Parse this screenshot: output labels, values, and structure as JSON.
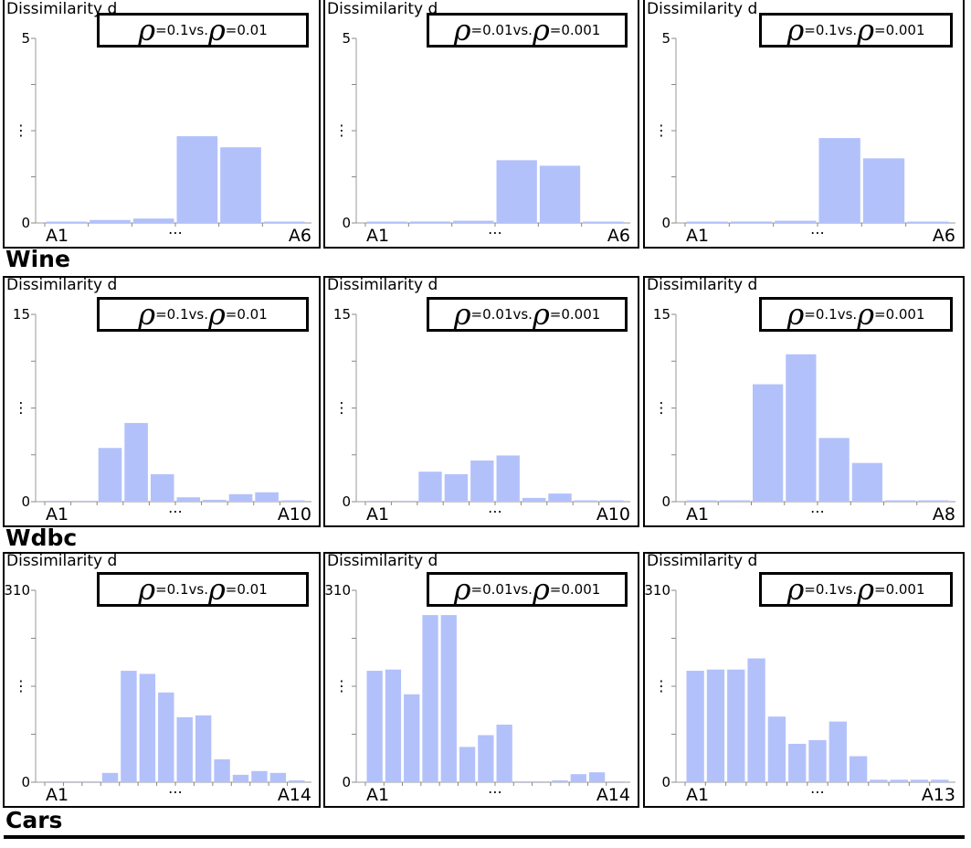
{
  "ylabel": "Dissimilarity d",
  "vs_text": " vs.",
  "rho_symbol": "ρ",
  "vdots": "⋮",
  "hdots": "⋯",
  "bar_color": "#b3c1fb",
  "groups": [
    {
      "title": "Wine"
    },
    {
      "title": "Wdbc"
    },
    {
      "title": "Cars"
    }
  ],
  "chart_data": [
    {
      "type": "bar",
      "ylim": [
        0,
        5
      ],
      "yticks": [
        "0",
        "5"
      ],
      "xticklabels": {
        "first": "A1",
        "last": "A6"
      },
      "legend": {
        "a": "=0.1",
        "b": "=0.01"
      },
      "values": [
        0.02,
        0.08,
        0.12,
        2.35,
        2.05,
        0.02
      ]
    },
    {
      "type": "bar",
      "ylim": [
        0,
        5
      ],
      "yticks": [
        "0",
        "5"
      ],
      "xticklabels": {
        "first": "A1",
        "last": "A6"
      },
      "legend": {
        "a": "=0.01",
        "b": "=0.001"
      },
      "values": [
        0.02,
        0.04,
        0.06,
        1.7,
        1.55,
        0.02
      ]
    },
    {
      "type": "bar",
      "ylim": [
        0,
        5
      ],
      "yticks": [
        "0",
        "5"
      ],
      "xticklabels": {
        "first": "A1",
        "last": "A6"
      },
      "legend": {
        "a": "=0.1",
        "b": "=0.001"
      },
      "values": [
        0.02,
        0.04,
        0.06,
        2.3,
        1.75,
        0.02
      ]
    },
    {
      "type": "bar",
      "ylim": [
        0,
        15
      ],
      "yticks": [
        "0",
        "15"
      ],
      "xticklabels": {
        "first": "A1",
        "last": "A10"
      },
      "legend": {
        "a": "=0.1",
        "b": "=0.01"
      },
      "values": [
        0,
        0,
        4.3,
        6.3,
        2.2,
        0.35,
        0.15,
        0.6,
        0.75,
        0.1
      ]
    },
    {
      "type": "bar",
      "ylim": [
        0,
        15
      ],
      "yticks": [
        "0",
        "15"
      ],
      "xticklabels": {
        "first": "A1",
        "last": "A10"
      },
      "legend": {
        "a": "=0.01",
        "b": "=0.001"
      },
      "values": [
        0,
        0,
        2.4,
        2.2,
        3.3,
        3.7,
        0.3,
        0.65,
        0.05,
        0.05
      ]
    },
    {
      "type": "bar",
      "ylim": [
        0,
        15
      ],
      "yticks": [
        "0",
        "15"
      ],
      "xticklabels": {
        "first": "A1",
        "last": "A8"
      },
      "legend": {
        "a": "=0.1",
        "b": "=0.001"
      },
      "values": [
        0.05,
        0.05,
        9.4,
        11.8,
        5.1,
        3.1,
        0.05,
        0.05
      ]
    },
    {
      "type": "bar",
      "ylim": [
        0,
        310
      ],
      "yticks": [
        "0",
        "310"
      ],
      "xticklabels": {
        "first": "A1",
        "last": "A14"
      },
      "legend": {
        "a": "=0.1",
        "b": "=0.01"
      },
      "values": [
        0,
        0,
        0,
        15,
        180,
        175,
        145,
        105,
        108,
        37,
        12,
        18,
        15,
        3
      ]
    },
    {
      "type": "bar",
      "ylim": [
        0,
        310
      ],
      "yticks": [
        "0",
        "310"
      ],
      "xticklabels": {
        "first": "A1",
        "last": "A14"
      },
      "legend": {
        "a": "=0.01",
        "b": "=0.001"
      },
      "values": [
        180,
        182,
        142,
        270,
        270,
        57,
        76,
        93,
        0,
        0,
        3,
        13,
        16,
        0
      ]
    },
    {
      "type": "bar",
      "ylim": [
        0,
        310
      ],
      "yticks": [
        "0",
        "310"
      ],
      "xticklabels": {
        "first": "A1",
        "last": "A13"
      },
      "legend": {
        "a": "=0.1",
        "b": "=0.001"
      },
      "values": [
        180,
        182,
        182,
        200,
        106,
        62,
        68,
        98,
        42,
        4,
        4,
        4,
        4
      ]
    }
  ]
}
